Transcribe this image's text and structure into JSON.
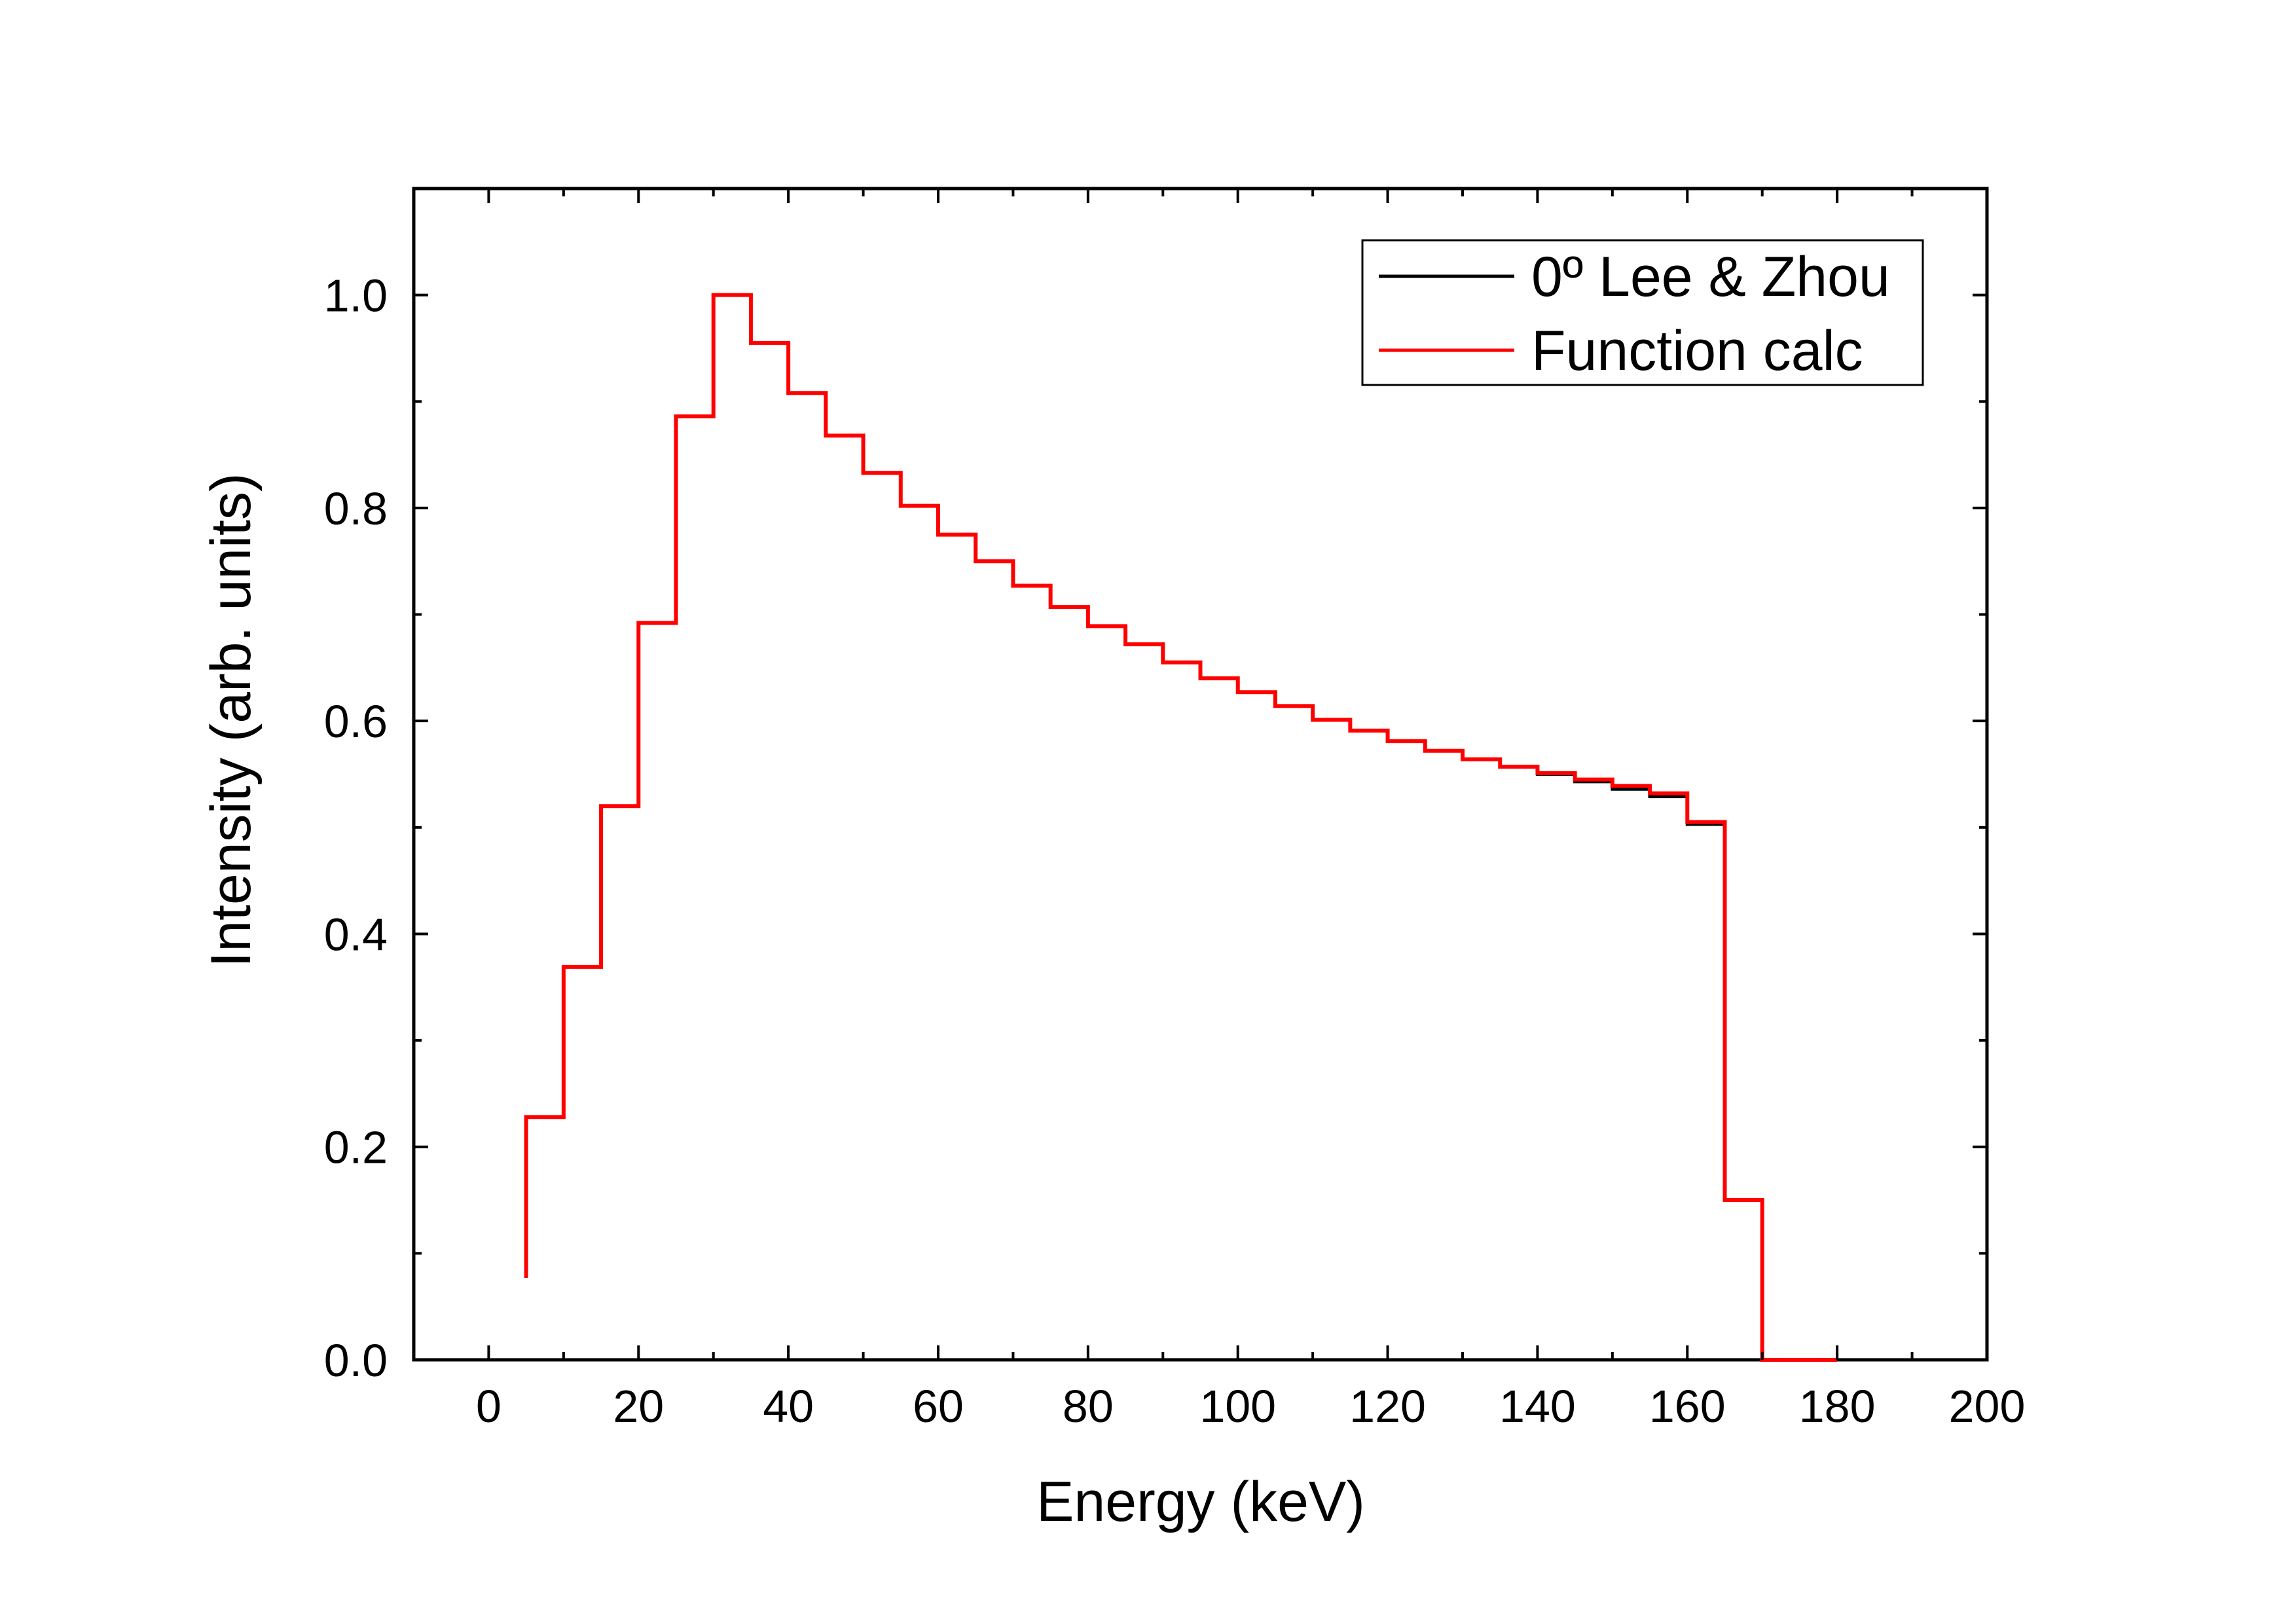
{
  "chart_data": {
    "type": "line",
    "title": "",
    "xlabel": "Energy (keV)",
    "ylabel": "Intensity (arb. units)",
    "xlim": [
      -10,
      200
    ],
    "ylim": [
      0,
      1.1
    ],
    "x_ticks": [
      0,
      20,
      40,
      60,
      80,
      100,
      120,
      140,
      160,
      180,
      200
    ],
    "x_tick_labels": [
      "0",
      "20",
      "40",
      "60",
      "80",
      "100",
      "120",
      "140",
      "160",
      "180",
      "200"
    ],
    "y_ticks": [
      0,
      0.2,
      0.4,
      0.6,
      0.8,
      1.0
    ],
    "y_tick_labels": [
      "0.0",
      "0.2",
      "0.4",
      "0.6",
      "0.8",
      "1.0"
    ],
    "legend_position": "top-right",
    "step_edges": [
      5,
      10,
      15,
      20,
      25,
      30,
      35,
      40,
      45,
      50,
      55,
      60,
      65,
      70,
      75,
      80,
      85,
      90,
      95,
      100,
      105,
      110,
      115,
      120,
      125,
      130,
      135,
      140,
      145,
      150,
      155,
      160,
      165,
      170,
      175,
      180
    ],
    "series": [
      {
        "name": "0º Lee & Zhou",
        "color": "#000000",
        "start_value": 0.077,
        "values": [
          0.228,
          0.369,
          0.52,
          0.692,
          0.886,
          1.0,
          0.955,
          0.908,
          0.868,
          0.833,
          0.802,
          0.775,
          0.75,
          0.727,
          0.707,
          0.689,
          0.672,
          0.655,
          0.64,
          0.627,
          0.614,
          0.601,
          0.591,
          0.581,
          0.572,
          0.564,
          0.557,
          0.55,
          0.543,
          0.536,
          0.529,
          0.503,
          0.15,
          0.0,
          0.0
        ]
      },
      {
        "name": "Function calc",
        "color": "#ff0000",
        "start_value": 0.077,
        "values": [
          0.228,
          0.369,
          0.52,
          0.692,
          0.886,
          1.0,
          0.955,
          0.908,
          0.868,
          0.833,
          0.802,
          0.775,
          0.75,
          0.727,
          0.707,
          0.689,
          0.672,
          0.655,
          0.64,
          0.627,
          0.614,
          0.601,
          0.591,
          0.581,
          0.572,
          0.564,
          0.557,
          0.551,
          0.545,
          0.539,
          0.532,
          0.505,
          0.15,
          0.0,
          0.0
        ]
      }
    ]
  }
}
